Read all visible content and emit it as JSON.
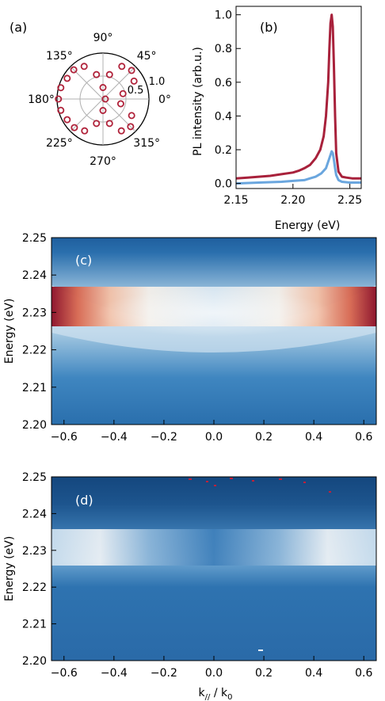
{
  "chart_data": [
    {
      "panel": "(a)",
      "type": "scatter",
      "subtype": "polar",
      "angle_labels": [
        "0°",
        "45°",
        "90°",
        "135°",
        "180°",
        "225°",
        "270°",
        "315°"
      ],
      "radial_ticks": [
        0.5,
        1.0
      ],
      "radial_tick_labels": [
        "0.5",
        "1.0"
      ],
      "rmax": 1.0,
      "marker": "open-circle",
      "color": "#b0223a",
      "angles_deg": [
        0,
        15,
        30,
        45,
        60,
        75,
        90,
        105,
        120,
        135,
        150,
        165,
        180,
        195,
        210,
        225,
        240,
        255,
        270,
        285,
        300,
        315,
        330,
        345
      ],
      "values": [
        0.05,
        0.45,
        0.78,
        0.88,
        0.82,
        0.55,
        0.25,
        0.55,
        0.82,
        0.9,
        0.9,
        0.95,
        0.97,
        0.95,
        0.9,
        0.88,
        0.8,
        0.55,
        0.25,
        0.55,
        0.8,
        0.85,
        0.72,
        0.4
      ]
    },
    {
      "panel": "(b)",
      "type": "line",
      "xlabel": "Energy (eV)",
      "ylabel": "PL intensity (arb.u.)",
      "xlim": [
        2.15,
        2.26
      ],
      "ylim": [
        -0.03,
        1.05
      ],
      "xticks": [
        2.15,
        2.2,
        2.25
      ],
      "xtick_labels": [
        "2.15",
        "2.20",
        "2.25"
      ],
      "yticks": [
        0.0,
        0.2,
        0.4,
        0.6,
        0.8,
        1.0
      ],
      "ytick_labels": [
        "0.0",
        "0.2",
        "0.4",
        "0.6",
        "0.8",
        "1.0"
      ],
      "series": [
        {
          "color": "#a8213b",
          "x": [
            2.15,
            2.16,
            2.17,
            2.18,
            2.19,
            2.2,
            2.205,
            2.21,
            2.215,
            2.22,
            2.224,
            2.227,
            2.229,
            2.231,
            2.232,
            2.233,
            2.234,
            2.235,
            2.236,
            2.237,
            2.238,
            2.24,
            2.243,
            2.247,
            2.252,
            2.26
          ],
          "y": [
            0.03,
            0.035,
            0.04,
            0.045,
            0.055,
            0.065,
            0.075,
            0.09,
            0.11,
            0.15,
            0.2,
            0.28,
            0.4,
            0.6,
            0.8,
            0.95,
            1.0,
            0.93,
            0.7,
            0.4,
            0.18,
            0.07,
            0.04,
            0.035,
            0.03,
            0.03
          ]
        },
        {
          "color": "#6aa6de",
          "x": [
            2.15,
            2.17,
            2.19,
            2.2,
            2.21,
            2.215,
            2.22,
            2.225,
            2.229,
            2.232,
            2.234,
            2.235,
            2.236,
            2.237,
            2.238,
            2.24,
            2.243,
            2.25,
            2.26
          ],
          "y": [
            0.0,
            0.005,
            0.01,
            0.015,
            0.02,
            0.03,
            0.04,
            0.06,
            0.09,
            0.15,
            0.19,
            0.18,
            0.14,
            0.09,
            0.05,
            0.02,
            0.01,
            0.005,
            0.005
          ]
        }
      ]
    },
    {
      "panel": "(c)",
      "type": "heatmap",
      "colormap": "blue-white-red",
      "ylabel": "Energy (eV)",
      "xlim": [
        -0.65,
        0.65
      ],
      "ylim": [
        2.2,
        2.25
      ],
      "xticks": [
        -0.6,
        -0.4,
        -0.2,
        0.0,
        0.2,
        0.4,
        0.6
      ],
      "xtick_labels": [
        "−0.6",
        "−0.4",
        "−0.2",
        "0.0",
        "0.2",
        "0.4",
        "0.6"
      ],
      "yticks": [
        2.2,
        2.21,
        2.22,
        2.23,
        2.24,
        2.25
      ],
      "ytick_labels": [
        "2.20",
        "2.21",
        "2.22",
        "2.23",
        "2.24",
        "2.25"
      ],
      "bright_band_energy_eV": 2.231,
      "band_minimum_eV": 2.226,
      "max_intensity_at_k": [
        -0.65,
        0.65
      ]
    },
    {
      "panel": "(d)",
      "type": "heatmap",
      "colormap": "blue-white-red",
      "xlabel": "k// / k0",
      "ylabel": "Energy (eV)",
      "xlim": [
        -0.65,
        0.65
      ],
      "ylim": [
        2.2,
        2.25
      ],
      "xticks": [
        -0.6,
        -0.4,
        -0.2,
        0.0,
        0.2,
        0.4,
        0.6
      ],
      "xtick_labels": [
        "−0.6",
        "−0.4",
        "−0.2",
        "0.0",
        "0.2",
        "0.4",
        "0.6"
      ],
      "yticks": [
        2.2,
        2.21,
        2.22,
        2.23,
        2.24,
        2.25
      ],
      "ytick_labels": [
        "2.20",
        "2.21",
        "2.22",
        "2.23",
        "2.24",
        "2.25"
      ],
      "bright_band_energy_eV": 2.23,
      "max_intensity_at_k": [
        -0.6,
        0.6
      ]
    }
  ],
  "labels": {
    "a": "(a)",
    "b": "(b)",
    "c": "(c)",
    "d": "(d)",
    "b_xlabel": "Energy (eV)",
    "b_ylabel": "PL intensity (arb.u.)",
    "c_ylabel": "Energy (eV)",
    "d_ylabel": "Energy (eV)",
    "d_xlabel_main": "k",
    "d_xlabel_sub1": "//",
    "d_xlabel_mid": " / k",
    "d_xlabel_sub2": "0"
  }
}
